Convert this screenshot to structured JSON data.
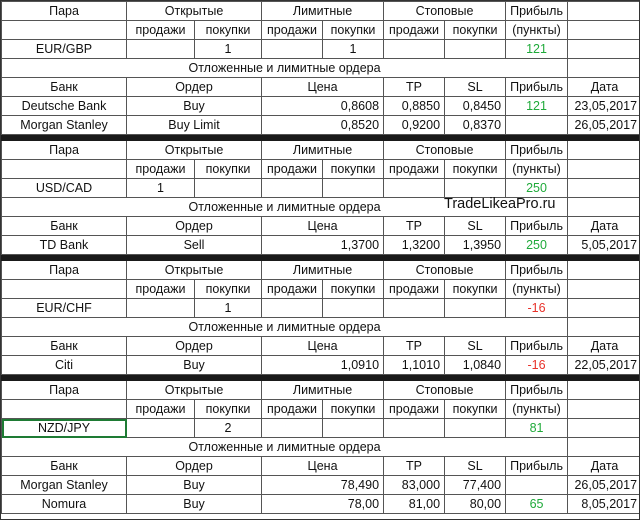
{
  "colors": {
    "positive": "#1faa3a",
    "negative": "#e8322a",
    "selection": "#1e7b34"
  },
  "blocks": [
    {
      "header": {
        "pair": "Пара",
        "groups": [
          "Открытые",
          "Лимитные",
          "Стоповые"
        ],
        "profit": "Прибыль",
        "sub": [
          "продажи",
          "покупки",
          "продажи",
          "покупки",
          "продажи",
          "покупки"
        ],
        "profit_unit": "(пункты)"
      },
      "position": {
        "pair": "EUR/GBP",
        "cells": [
          null,
          1,
          null,
          1,
          null,
          null
        ],
        "profit": 121
      },
      "section": "Отложенные и лимитные ордера",
      "orders_header": [
        "Банк",
        "Ордер",
        "Цена",
        "TP",
        "SL",
        "Прибыль",
        "Дата"
      ],
      "orders": [
        [
          "Deutsche Bank",
          "Buy",
          "0,8608",
          "0,8850",
          "0,8450",
          121,
          "23,05,2017"
        ],
        [
          "Morgan Stanley",
          "Buy Limit",
          "0,8520",
          "0,9200",
          "0,8370",
          null,
          "26,05,2017"
        ]
      ]
    },
    {
      "header": {
        "pair": "Пара",
        "groups": [
          "Открытые",
          "Лимитные",
          "Стоповые"
        ],
        "profit": "Прибыль",
        "sub": [
          "продажи",
          "покупки",
          "продажи",
          "покупки",
          "продажи",
          "покупки"
        ],
        "profit_unit": "(пункты)"
      },
      "position": {
        "pair": "USD/CAD",
        "cells": [
          1,
          null,
          null,
          null,
          null,
          null
        ],
        "profit": 250
      },
      "section": "Отложенные и лимитные ордера",
      "watermark": "TradeLikeaPro.ru",
      "orders_header": [
        "Банк",
        "Ордер",
        "Цена",
        "TP",
        "SL",
        "Прибыль",
        "Дата"
      ],
      "orders": [
        [
          "TD Bank",
          "Sell",
          "1,3700",
          "1,3200",
          "1,3950",
          250,
          "5,05,2017"
        ]
      ]
    },
    {
      "header": {
        "pair": "Пара",
        "groups": [
          "Открытые",
          "Лимитные",
          "Стоповые"
        ],
        "profit": "Прибыль",
        "sub": [
          "продажи",
          "покупки",
          "продажи",
          "покупки",
          "продажи",
          "покупки"
        ],
        "profit_unit": "(пункты)"
      },
      "position": {
        "pair": "EUR/CHF",
        "cells": [
          null,
          1,
          null,
          null,
          null,
          null
        ],
        "profit": -16
      },
      "section": "Отложенные и лимитные ордера",
      "orders_header": [
        "Банк",
        "Ордер",
        "Цена",
        "TP",
        "SL",
        "Прибыль",
        "Дата"
      ],
      "orders": [
        [
          "Citi",
          "Buy",
          "1,0910",
          "1,1010",
          "1,0840",
          -16,
          "22,05,2017"
        ]
      ]
    },
    {
      "header": {
        "pair": "Пара",
        "groups": [
          "Открытые",
          "Лимитные",
          "Стоповые"
        ],
        "profit": "Прибыль",
        "sub": [
          "продажи",
          "покупки",
          "продажи",
          "покупки",
          "продажи",
          "покупки"
        ],
        "profit_unit": "(пункты)"
      },
      "position": {
        "pair": "NZD/JPY",
        "cells": [
          null,
          2,
          null,
          null,
          null,
          null
        ],
        "profit": 81,
        "selected": true
      },
      "section": "Отложенные и лимитные ордера",
      "orders_header": [
        "Банк",
        "Ордер",
        "Цена",
        "TP",
        "SL",
        "Прибыль",
        "Дата"
      ],
      "orders": [
        [
          "Morgan Stanley",
          "Buy",
          "78,490",
          "83,000",
          "77,400",
          null,
          "26,05,2017"
        ],
        [
          "Nomura",
          "Buy",
          "78,00",
          "81,00",
          "80,00",
          65,
          "8,05,2017"
        ]
      ]
    }
  ]
}
